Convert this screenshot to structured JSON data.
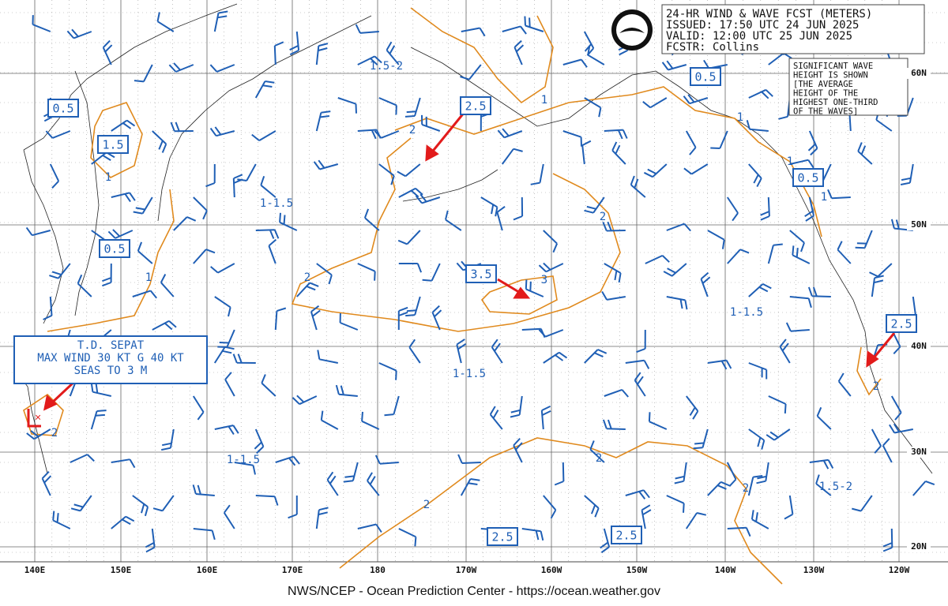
{
  "header": {
    "lines": [
      "24-HR WIND & WAVE FCST (METERS)",
      "ISSUED: 17:50 UTC 24 JUN 2025",
      "VALID:  12:00 UTC 25 JUN 2025",
      "FCSTR:  Collins"
    ]
  },
  "note": {
    "lines": [
      "SIGNIFICANT WAVE",
      "HEIGHT IS SHOWN",
      "[THE AVERAGE",
      "HEIGHT OF THE",
      "HIGHEST ONE-THIRD",
      "OF THE WAVES]"
    ]
  },
  "storm": {
    "lines": [
      "T.D. SEPAT",
      "MAX WIND 30 KT G 40 KT",
      "SEAS TO 3 M"
    ]
  },
  "boxed_labels": [
    "0.5",
    "1.5",
    "0.5",
    "2.5",
    "0.5",
    "0.5",
    "3.5",
    "2.5",
    "2.5",
    "2.5"
  ],
  "contour_labels": [
    "1",
    "2",
    "1",
    "1",
    "1",
    "1",
    "2",
    "2",
    "3",
    "1",
    "2",
    "2",
    "2",
    "2",
    "2"
  ],
  "area_labels": [
    "1.5-2",
    "1-1.5",
    "1-1.5",
    "1-1.5",
    "1-1.5",
    "1.5-2"
  ],
  "longitudes": [
    "140E",
    "150E",
    "160E",
    "170E",
    "180",
    "170W",
    "160W",
    "150W",
    "140W",
    "130W",
    "120W"
  ],
  "latitudes": [
    "60N",
    "50N",
    "40N",
    "30N",
    "20N"
  ],
  "footer": "NWS/NCEP - Ocean Prediction Center - https://ocean.weather.gov"
}
